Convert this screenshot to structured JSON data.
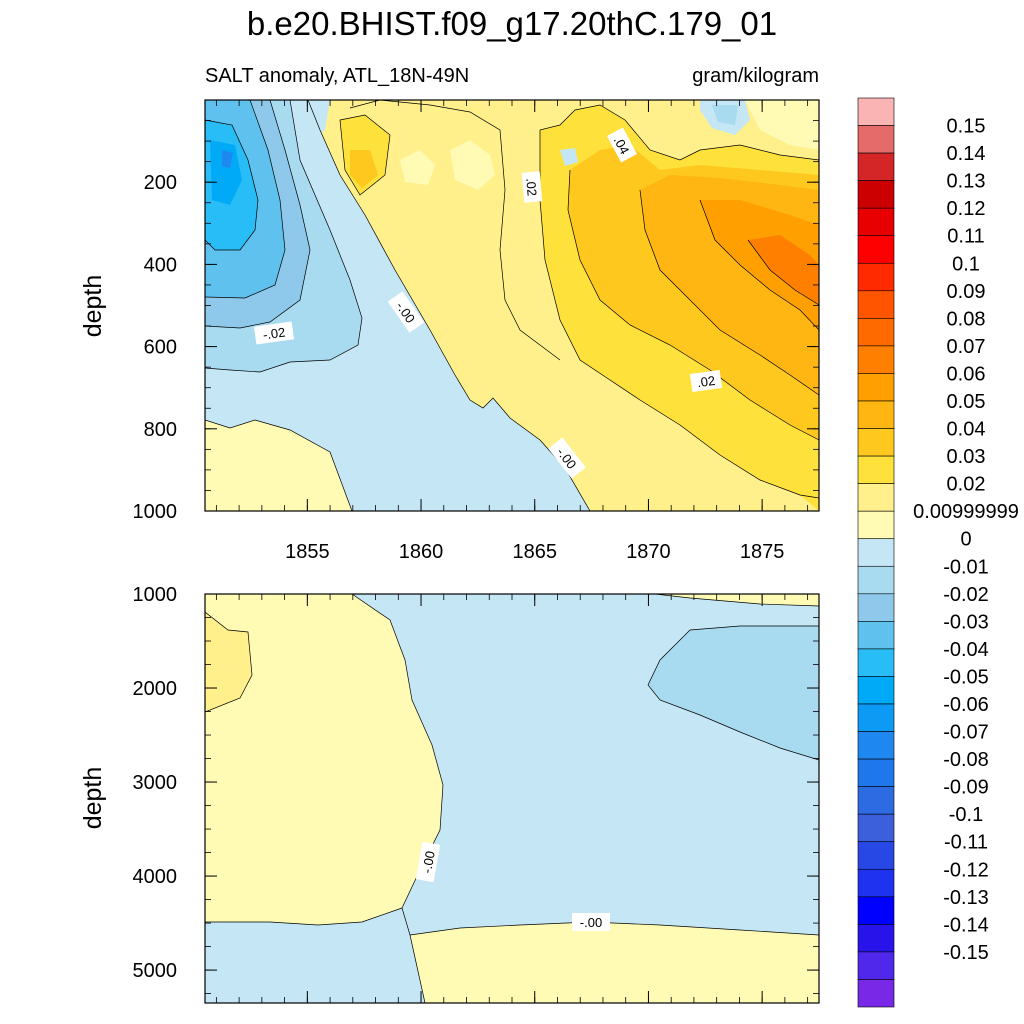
{
  "chart_data": {
    "type": "contour",
    "title": "b.e20.BHIST.f09_g17.20thC.179_01",
    "variable_label": "SALT anomaly, ATL_18N-49N",
    "units": "gram/kilogram",
    "x_ticks": [
      "1855",
      "1860",
      "1865",
      "1870",
      "1875"
    ],
    "x_tick_values": [
      1855,
      1860,
      1865,
      1870,
      1875
    ],
    "xlim": [
      1850.5,
      1877.5
    ],
    "panels": [
      {
        "name": "upper",
        "ylabel": "depth",
        "ylim": [
          0,
          1000
        ],
        "y_ticks": [
          "200",
          "400",
          "600",
          "800",
          "1000"
        ],
        "y_tick_values": [
          200,
          400,
          600,
          800,
          1000
        ],
        "contour_labels": [
          "-.02",
          "-.00",
          "-.00",
          ".02",
          ".02",
          ".04"
        ]
      },
      {
        "name": "lower",
        "ylabel": "depth",
        "ylim": [
          1000,
          5350
        ],
        "y_ticks": [
          "1000",
          "2000",
          "3000",
          "4000",
          "5000"
        ],
        "y_tick_values": [
          1000,
          2000,
          3000,
          4000,
          5000
        ],
        "contour_labels": [
          "-.00",
          "-.00"
        ]
      }
    ],
    "colorbar": {
      "labels": [
        "0.15",
        "0.14",
        "0.13",
        "0.12",
        "0.11",
        "0.1",
        "0.09",
        "0.08",
        "0.07",
        "0.06",
        "0.05",
        "0.04",
        "0.03",
        "0.02",
        "0.00999999",
        "0",
        "-0.01",
        "-0.02",
        "-0.03",
        "-0.04",
        "-0.05",
        "-0.06",
        "-0.07",
        "-0.08",
        "-0.09",
        "-0.1",
        "-0.11",
        "-0.12",
        "-0.13",
        "-0.14",
        "-0.15"
      ],
      "colors": [
        "#FBB4B4",
        "#E56A6A",
        "#D42626",
        "#CC0000",
        "#E80000",
        "#FF0000",
        "#FF2A00",
        "#FF5500",
        "#FF6A00",
        "#FF8000",
        "#FFA000",
        "#FFB612",
        "#FFC81E",
        "#FFE13C",
        "#FFF08C",
        "#FFFAB4",
        "#C4E6F5",
        "#A8DAF0",
        "#8EC9EB",
        "#5FC2EE",
        "#28BDF6",
        "#00AAF7",
        "#0C9AF5",
        "#1E87F0",
        "#1E78EB",
        "#2D6BE3",
        "#3C5FDC",
        "#2848E6",
        "#1E32F0",
        "#0000FF",
        "#2814EB",
        "#5028EB",
        "#7828E6"
      ]
    }
  }
}
